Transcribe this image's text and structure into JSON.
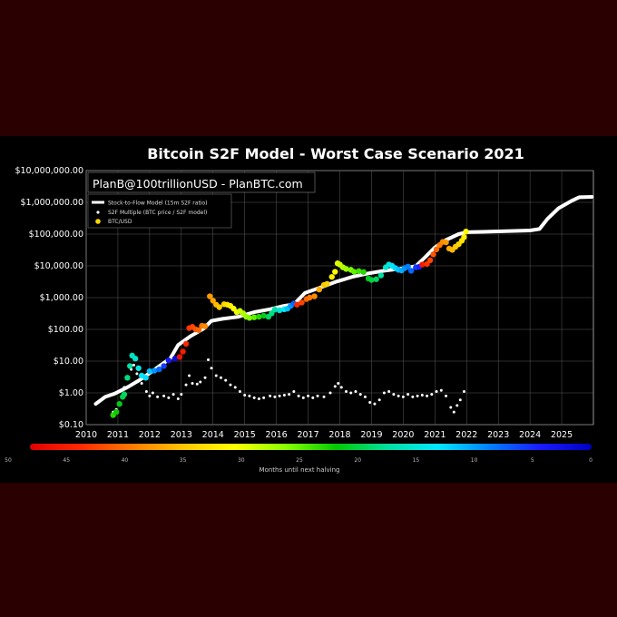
{
  "chart_data": {
    "type": "scatter",
    "title": "Bitcoin S2F Model - Worst Case Scenario 2021",
    "watermark": "PlanB@100trillionUSD - PlanBTC.com",
    "y_scale": "log",
    "ylim": [
      0.1,
      10000000
    ],
    "xlim": [
      2010.0,
      2026.0
    ],
    "y_tick_values": [
      0.1,
      1,
      10,
      100,
      1000,
      10000,
      100000,
      1000000,
      10000000
    ],
    "y_tick_labels": [
      "$0.10",
      "$1.00",
      "$10.00",
      "$100.00",
      "$1,000.00",
      "$10,000.00",
      "$100,000.00",
      "$1,000,000.00",
      "$10,000,000.00"
    ],
    "x_ticks": [
      "2010",
      "2011",
      "2012",
      "2013",
      "2014",
      "2015",
      "2016",
      "2017",
      "2018",
      "2019",
      "2020",
      "2021",
      "2022",
      "2023",
      "2024",
      "2025"
    ],
    "grid": true,
    "legend_position": "top-left",
    "legend": [
      {
        "key": "model",
        "label": "Stock-to-Flow Model (15m S2F ratio)",
        "color": "#ffffff"
      },
      {
        "key": "multiple",
        "label": "S2F Multiple (BTC price / S2F model)",
        "color": "#ffffff"
      },
      {
        "key": "price",
        "label": "BTC/USD",
        "color": "#ffd700"
      }
    ],
    "colorbar": {
      "label": "Months until next halving",
      "tick_labels": [
        "50",
        "45",
        "40",
        "35",
        "30",
        "25",
        "20",
        "15",
        "10",
        "5",
        "0"
      ],
      "tick_values": [
        50,
        45,
        40,
        35,
        30,
        25,
        20,
        15,
        10,
        5,
        0
      ],
      "colors": [
        "#e00000",
        "#ff2a00",
        "#ff7a00",
        "#ffc400",
        "#ffff00",
        "#8aff00",
        "#00c800",
        "#00e0a0",
        "#00e8ff",
        "#0080ff",
        "#1a1aff",
        "#0000c0"
      ]
    },
    "series": [
      {
        "name": "Stock-to-Flow Model (15m S2F ratio)",
        "style": "line",
        "color": "#ffffff",
        "points": [
          [
            2010.3,
            0.45
          ],
          [
            2010.6,
            0.75
          ],
          [
            2010.9,
            0.95
          ],
          [
            2011.3,
            1.5
          ],
          [
            2011.7,
            2.6
          ],
          [
            2012.0,
            4.2
          ],
          [
            2012.35,
            7.5
          ],
          [
            2012.65,
            12
          ],
          [
            2012.9,
            32
          ],
          [
            2013.3,
            62
          ],
          [
            2013.7,
            105
          ],
          [
            2013.95,
            185
          ],
          [
            2014.3,
            215
          ],
          [
            2014.8,
            250
          ],
          [
            2015.3,
            350
          ],
          [
            2015.8,
            430
          ],
          [
            2016.2,
            540
          ],
          [
            2016.55,
            610
          ],
          [
            2016.9,
            1400
          ],
          [
            2017.4,
            2100
          ],
          [
            2017.9,
            3200
          ],
          [
            2018.4,
            4500
          ],
          [
            2018.9,
            5800
          ],
          [
            2019.4,
            7000
          ],
          [
            2019.9,
            8100
          ],
          [
            2020.4,
            9800
          ],
          [
            2020.7,
            19000
          ],
          [
            2021.0,
            38000
          ],
          [
            2021.35,
            65000
          ],
          [
            2021.75,
            100000
          ],
          [
            2022.0,
            115000
          ],
          [
            2022.5,
            118000
          ],
          [
            2023.0,
            122000
          ],
          [
            2023.5,
            126000
          ],
          [
            2024.0,
            130000
          ],
          [
            2024.3,
            145000
          ],
          [
            2024.55,
            300000
          ],
          [
            2024.9,
            650000
          ],
          [
            2025.3,
            1100000
          ],
          [
            2025.55,
            1450000
          ],
          [
            2025.95,
            1480000
          ]
        ]
      },
      {
        "name": "S2F Multiple (BTC price / S2F model)",
        "style": "dots",
        "color": "#ffffff",
        "points": [
          [
            2010.85,
            0.25
          ],
          [
            2010.95,
            0.3
          ],
          [
            2011.05,
            0.45
          ],
          [
            2011.2,
            1.5
          ],
          [
            2011.3,
            3.0
          ],
          [
            2011.42,
            5.5
          ],
          [
            2011.5,
            7.5
          ],
          [
            2011.6,
            4.0
          ],
          [
            2011.75,
            2.0
          ],
          [
            2011.9,
            1.1
          ],
          [
            2012.0,
            0.8
          ],
          [
            2012.1,
            1.0
          ],
          [
            2012.25,
            0.75
          ],
          [
            2012.45,
            0.8
          ],
          [
            2012.6,
            0.7
          ],
          [
            2012.75,
            0.9
          ],
          [
            2012.9,
            0.65
          ],
          [
            2013.0,
            0.9
          ],
          [
            2013.15,
            1.8
          ],
          [
            2013.25,
            3.5
          ],
          [
            2013.35,
            2.0
          ],
          [
            2013.5,
            1.9
          ],
          [
            2013.6,
            2.2
          ],
          [
            2013.75,
            3.0
          ],
          [
            2013.85,
            11.0
          ],
          [
            2013.95,
            6.0
          ],
          [
            2014.1,
            3.5
          ],
          [
            2014.25,
            3.0
          ],
          [
            2014.4,
            2.5
          ],
          [
            2014.55,
            1.8
          ],
          [
            2014.7,
            1.5
          ],
          [
            2014.85,
            1.1
          ],
          [
            2015.0,
            0.85
          ],
          [
            2015.15,
            0.8
          ],
          [
            2015.3,
            0.7
          ],
          [
            2015.45,
            0.65
          ],
          [
            2015.6,
            0.7
          ],
          [
            2015.8,
            0.8
          ],
          [
            2015.95,
            0.75
          ],
          [
            2016.1,
            0.8
          ],
          [
            2016.25,
            0.85
          ],
          [
            2016.4,
            0.9
          ],
          [
            2016.55,
            1.1
          ],
          [
            2016.7,
            0.8
          ],
          [
            2016.85,
            0.7
          ],
          [
            2017.0,
            0.8
          ],
          [
            2017.15,
            0.7
          ],
          [
            2017.3,
            0.8
          ],
          [
            2017.5,
            0.75
          ],
          [
            2017.7,
            1.0
          ],
          [
            2017.85,
            1.6
          ],
          [
            2017.95,
            2.0
          ],
          [
            2018.05,
            1.5
          ],
          [
            2018.2,
            1.1
          ],
          [
            2018.35,
            1.0
          ],
          [
            2018.5,
            1.1
          ],
          [
            2018.65,
            0.9
          ],
          [
            2018.8,
            0.75
          ],
          [
            2018.95,
            0.5
          ],
          [
            2019.1,
            0.45
          ],
          [
            2019.25,
            0.6
          ],
          [
            2019.4,
            1.0
          ],
          [
            2019.55,
            1.1
          ],
          [
            2019.7,
            0.9
          ],
          [
            2019.85,
            0.8
          ],
          [
            2020.0,
            0.75
          ],
          [
            2020.15,
            0.9
          ],
          [
            2020.3,
            0.75
          ],
          [
            2020.45,
            0.8
          ],
          [
            2020.6,
            0.85
          ],
          [
            2020.75,
            0.8
          ],
          [
            2020.9,
            0.9
          ],
          [
            2021.05,
            1.1
          ],
          [
            2021.2,
            1.2
          ],
          [
            2021.35,
            0.8
          ],
          [
            2021.5,
            0.35
          ],
          [
            2021.6,
            0.25
          ],
          [
            2021.7,
            0.4
          ],
          [
            2021.8,
            0.6
          ],
          [
            2021.92,
            1.1
          ]
        ]
      },
      {
        "name": "BTC/USD",
        "style": "dots",
        "color_by": "months_to_halving",
        "points": [
          [
            2010.85,
            0.2,
            24
          ],
          [
            2010.95,
            0.25,
            23
          ],
          [
            2011.05,
            0.45,
            22
          ],
          [
            2011.15,
            0.75,
            21
          ],
          [
            2011.2,
            0.9,
            20
          ],
          [
            2011.3,
            3.0,
            19
          ],
          [
            2011.38,
            7.0,
            18
          ],
          [
            2011.45,
            15.0,
            17
          ],
          [
            2011.55,
            12.0,
            16
          ],
          [
            2011.65,
            6.0,
            15
          ],
          [
            2011.75,
            3.5,
            14
          ],
          [
            2011.88,
            3.0,
            13
          ],
          [
            2012.0,
            4.8,
            12
          ],
          [
            2012.15,
            5.0,
            10
          ],
          [
            2012.3,
            5.5,
            8
          ],
          [
            2012.45,
            7.0,
            6
          ],
          [
            2012.6,
            10.5,
            4
          ],
          [
            2012.8,
            12.0,
            2
          ],
          [
            2012.95,
            13.5,
            48
          ],
          [
            2013.05,
            20,
            47
          ],
          [
            2013.15,
            35,
            46
          ],
          [
            2013.25,
            110,
            45
          ],
          [
            2013.35,
            120,
            44
          ],
          [
            2013.45,
            100,
            43
          ],
          [
            2013.55,
            95,
            42
          ],
          [
            2013.65,
            130,
            41
          ],
          [
            2013.75,
            125,
            40
          ],
          [
            2013.9,
            1100,
            39
          ],
          [
            2014.0,
            800,
            38
          ],
          [
            2014.1,
            600,
            37
          ],
          [
            2014.2,
            500,
            36
          ],
          [
            2014.35,
            620,
            35
          ],
          [
            2014.45,
            600,
            34
          ],
          [
            2014.55,
            550,
            33
          ],
          [
            2014.65,
            450,
            32
          ],
          [
            2014.75,
            350,
            31
          ],
          [
            2014.85,
            380,
            30
          ],
          [
            2014.95,
            320,
            29
          ],
          [
            2015.05,
            250,
            28
          ],
          [
            2015.15,
            230,
            27
          ],
          [
            2015.3,
            240,
            26
          ],
          [
            2015.45,
            250,
            24
          ],
          [
            2015.6,
            270,
            22
          ],
          [
            2015.75,
            250,
            20
          ],
          [
            2015.85,
            320,
            19
          ],
          [
            2015.95,
            420,
            18
          ],
          [
            2016.1,
            400,
            16
          ],
          [
            2016.25,
            430,
            14
          ],
          [
            2016.35,
            450,
            12
          ],
          [
            2016.45,
            550,
            10
          ],
          [
            2016.55,
            650,
            8
          ],
          [
            2016.65,
            600,
            46
          ],
          [
            2016.8,
            700,
            44
          ],
          [
            2016.95,
            900,
            42
          ],
          [
            2017.05,
            1000,
            41
          ],
          [
            2017.2,
            1100,
            40
          ],
          [
            2017.35,
            1800,
            38
          ],
          [
            2017.5,
            2500,
            36
          ],
          [
            2017.6,
            2700,
            35
          ],
          [
            2017.75,
            4500,
            33
          ],
          [
            2017.85,
            6500,
            32
          ],
          [
            2017.93,
            12000,
            31
          ],
          [
            2018.0,
            11000,
            30
          ],
          [
            2018.1,
            9000,
            29
          ],
          [
            2018.2,
            8000,
            28
          ],
          [
            2018.35,
            7500,
            27
          ],
          [
            2018.45,
            6500,
            26
          ],
          [
            2018.6,
            6800,
            25
          ],
          [
            2018.75,
            6400,
            24
          ],
          [
            2018.9,
            4000,
            22
          ],
          [
            2019.0,
            3600,
            21
          ],
          [
            2019.15,
            3800,
            20
          ],
          [
            2019.3,
            5000,
            18
          ],
          [
            2019.45,
            9000,
            16
          ],
          [
            2019.55,
            11000,
            15
          ],
          [
            2019.65,
            10000,
            14
          ],
          [
            2019.75,
            8500,
            13
          ],
          [
            2019.85,
            7500,
            12
          ],
          [
            2019.95,
            7200,
            11
          ],
          [
            2020.05,
            8500,
            10
          ],
          [
            2020.15,
            9500,
            9
          ],
          [
            2020.25,
            7000,
            8
          ],
          [
            2020.4,
            9000,
            6
          ],
          [
            2020.5,
            9300,
            5
          ],
          [
            2020.6,
            11000,
            47
          ],
          [
            2020.75,
            11500,
            45
          ],
          [
            2020.85,
            15000,
            44
          ],
          [
            2020.95,
            23000,
            43
          ],
          [
            2021.05,
            33000,
            42
          ],
          [
            2021.15,
            45000,
            41
          ],
          [
            2021.25,
            57000,
            40
          ],
          [
            2021.35,
            55000,
            39
          ],
          [
            2021.45,
            35000,
            38
          ],
          [
            2021.55,
            32000,
            37
          ],
          [
            2021.65,
            40000,
            36
          ],
          [
            2021.75,
            48000,
            35
          ],
          [
            2021.85,
            62000,
            34
          ],
          [
            2021.92,
            80000,
            33
          ],
          [
            2021.98,
            120000,
            32
          ]
        ]
      }
    ]
  }
}
